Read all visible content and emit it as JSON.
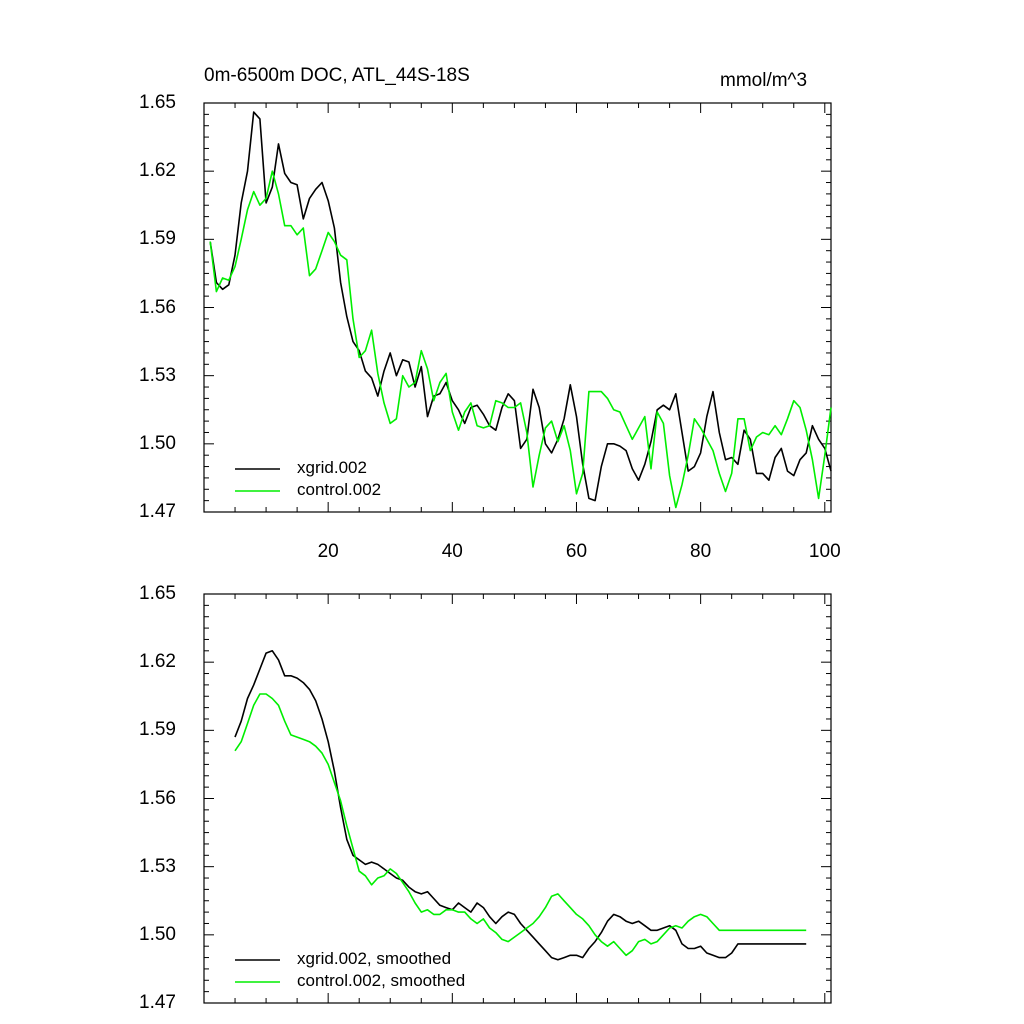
{
  "chart_data": [
    {
      "type": "line",
      "panel": "top",
      "title": "0m-6500m DOC, ATL_44S-18S",
      "units": "mmol/m^3",
      "xlabel": "",
      "ylabel": "",
      "xlim": [
        0,
        101
      ],
      "ylim": [
        1.47,
        1.65
      ],
      "yticks": [
        "1.65",
        "1.62",
        "1.59",
        "1.56",
        "1.53",
        "1.50",
        "1.47"
      ],
      "xticks": [
        "20",
        "40",
        "60",
        "80",
        "100"
      ],
      "x": [
        1,
        2,
        3,
        4,
        5,
        6,
        7,
        8,
        9,
        10,
        11,
        12,
        13,
        14,
        15,
        16,
        17,
        18,
        19,
        20,
        21,
        22,
        23,
        24,
        25,
        26,
        27,
        28,
        29,
        30,
        31,
        32,
        33,
        34,
        35,
        36,
        37,
        38,
        39,
        40,
        41,
        42,
        43,
        44,
        45,
        46,
        47,
        48,
        49,
        50,
        51,
        52,
        53,
        54,
        55,
        56,
        57,
        58,
        59,
        60,
        61,
        62,
        63,
        64,
        65,
        66,
        67,
        68,
        69,
        70,
        71,
        72,
        73,
        74,
        75,
        76,
        77,
        78,
        79,
        80,
        81,
        82,
        83,
        84,
        85,
        86,
        87,
        88,
        89,
        90,
        91,
        92,
        93,
        94,
        95,
        96,
        97,
        98,
        99,
        100,
        101
      ],
      "series": [
        {
          "name": "xgrid.002",
          "color": "#000000",
          "values": [
            1.589,
            1.571,
            1.568,
            1.57,
            1.583,
            1.606,
            1.62,
            1.646,
            1.643,
            1.606,
            1.613,
            1.632,
            1.619,
            1.615,
            1.614,
            1.599,
            1.608,
            1.612,
            1.615,
            1.607,
            1.595,
            1.571,
            1.556,
            1.545,
            1.541,
            1.532,
            1.529,
            1.521,
            1.532,
            1.54,
            1.53,
            1.537,
            1.536,
            1.525,
            1.534,
            1.512,
            1.521,
            1.522,
            1.527,
            1.519,
            1.515,
            1.509,
            1.516,
            1.517,
            1.513,
            1.508,
            1.506,
            1.516,
            1.522,
            1.519,
            1.498,
            1.502,
            1.524,
            1.516,
            1.5,
            1.496,
            1.502,
            1.511,
            1.526,
            1.512,
            1.491,
            1.476,
            1.475,
            1.49,
            1.5,
            1.5,
            1.499,
            1.497,
            1.489,
            1.484,
            1.491,
            1.501,
            1.515,
            1.517,
            1.515,
            1.522,
            1.505,
            1.488,
            1.49,
            1.496,
            1.512,
            1.523,
            1.505,
            1.493,
            1.494,
            1.491,
            1.506,
            1.502,
            1.487,
            1.487,
            1.484,
            1.494,
            1.498,
            1.488,
            1.486,
            1.493,
            1.496,
            1.508,
            1.502,
            1.498,
            1.488
          ]
        },
        {
          "name": "control.002",
          "color": "#00ee00",
          "values": [
            1.589,
            1.567,
            1.573,
            1.572,
            1.578,
            1.59,
            1.603,
            1.611,
            1.605,
            1.608,
            1.62,
            1.61,
            1.596,
            1.596,
            1.592,
            1.595,
            1.574,
            1.577,
            1.585,
            1.593,
            1.589,
            1.583,
            1.581,
            1.555,
            1.538,
            1.541,
            1.55,
            1.531,
            1.518,
            1.509,
            1.511,
            1.53,
            1.525,
            1.527,
            1.541,
            1.533,
            1.519,
            1.527,
            1.531,
            1.514,
            1.506,
            1.514,
            1.518,
            1.508,
            1.507,
            1.508,
            1.519,
            1.518,
            1.516,
            1.516,
            1.518,
            1.505,
            1.481,
            1.495,
            1.507,
            1.51,
            1.501,
            1.508,
            1.497,
            1.478,
            1.487,
            1.523,
            1.523,
            1.523,
            1.52,
            1.515,
            1.514,
            1.508,
            1.502,
            1.507,
            1.512,
            1.489,
            1.514,
            1.509,
            1.486,
            1.472,
            1.482,
            1.495,
            1.511,
            1.507,
            1.502,
            1.497,
            1.487,
            1.479,
            1.487,
            1.511,
            1.511,
            1.497,
            1.503,
            1.505,
            1.504,
            1.508,
            1.504,
            1.511,
            1.519,
            1.516,
            1.506,
            1.493,
            1.476,
            1.495,
            1.516
          ]
        }
      ],
      "legend": [
        "xgrid.002",
        "control.002"
      ],
      "legend_position": "bottom-left"
    },
    {
      "type": "line",
      "panel": "bottom",
      "title": "",
      "xlabel": "",
      "ylabel": "",
      "xlim": [
        0,
        101
      ],
      "ylim": [
        1.47,
        1.65
      ],
      "yticks": [
        "1.65",
        "1.62",
        "1.59",
        "1.56",
        "1.53",
        "1.50",
        "1.47"
      ],
      "x": [
        5,
        6,
        7,
        8,
        9,
        10,
        11,
        12,
        13,
        14,
        15,
        16,
        17,
        18,
        19,
        20,
        21,
        22,
        23,
        24,
        25,
        26,
        27,
        28,
        29,
        30,
        31,
        32,
        33,
        34,
        35,
        36,
        37,
        38,
        39,
        40,
        41,
        42,
        43,
        44,
        45,
        46,
        47,
        48,
        49,
        50,
        51,
        52,
        53,
        54,
        55,
        56,
        57,
        58,
        59,
        60,
        61,
        62,
        63,
        64,
        65,
        66,
        67,
        68,
        69,
        70,
        71,
        72,
        73,
        74,
        75,
        76,
        77,
        78,
        79,
        80,
        81,
        82,
        83,
        84,
        85,
        86,
        87,
        88,
        89,
        90,
        91,
        92,
        93,
        94,
        95,
        96,
        97
      ],
      "series": [
        {
          "name": "xgrid.002, smoothed",
          "color": "#000000",
          "values": [
            1.587,
            1.594,
            1.604,
            1.61,
            1.617,
            1.624,
            1.625,
            1.621,
            1.614,
            1.614,
            1.613,
            1.611,
            1.608,
            1.603,
            1.595,
            1.585,
            1.572,
            1.556,
            1.542,
            1.535,
            1.533,
            1.531,
            1.532,
            1.531,
            1.529,
            1.527,
            1.525,
            1.524,
            1.521,
            1.519,
            1.518,
            1.519,
            1.516,
            1.513,
            1.512,
            1.511,
            1.514,
            1.512,
            1.51,
            1.514,
            1.512,
            1.508,
            1.505,
            1.508,
            1.51,
            1.509,
            1.505,
            1.502,
            1.499,
            1.496,
            1.493,
            1.49,
            1.489,
            1.49,
            1.491,
            1.491,
            1.49,
            1.494,
            1.497,
            1.501,
            1.506,
            1.509,
            1.508,
            1.506,
            1.505,
            1.506,
            1.504,
            1.502,
            1.502,
            1.503,
            1.504,
            1.502,
            1.496,
            1.494,
            1.494,
            1.495,
            1.492,
            1.491,
            1.49,
            1.49,
            1.492,
            1.496,
            1.496,
            1.496,
            1.496,
            1.496,
            1.496,
            1.496,
            1.496,
            1.496,
            1.496,
            1.496,
            1.496
          ]
        },
        {
          "name": "control.002, smoothed",
          "color": "#00ee00",
          "values": [
            1.581,
            1.585,
            1.593,
            1.601,
            1.606,
            1.606,
            1.604,
            1.601,
            1.594,
            1.588,
            1.587,
            1.586,
            1.585,
            1.583,
            1.58,
            1.575,
            1.567,
            1.559,
            1.548,
            1.538,
            1.528,
            1.526,
            1.522,
            1.525,
            1.526,
            1.529,
            1.527,
            1.523,
            1.519,
            1.514,
            1.51,
            1.511,
            1.509,
            1.509,
            1.511,
            1.511,
            1.51,
            1.51,
            1.507,
            1.505,
            1.507,
            1.503,
            1.501,
            1.498,
            1.497,
            1.499,
            1.501,
            1.503,
            1.505,
            1.508,
            1.512,
            1.517,
            1.518,
            1.515,
            1.512,
            1.509,
            1.507,
            1.504,
            1.5,
            1.497,
            1.495,
            1.497,
            1.494,
            1.491,
            1.493,
            1.497,
            1.498,
            1.496,
            1.497,
            1.5,
            1.503,
            1.504,
            1.503,
            1.506,
            1.508,
            1.509,
            1.508,
            1.505,
            1.502,
            1.502,
            1.502,
            1.502,
            1.502,
            1.502,
            1.502,
            1.502,
            1.502,
            1.502,
            1.502,
            1.502,
            1.502,
            1.502,
            1.502
          ]
        }
      ],
      "legend": [
        "xgrid.002, smoothed",
        "control.002, smoothed"
      ],
      "legend_position": "bottom-left"
    }
  ]
}
